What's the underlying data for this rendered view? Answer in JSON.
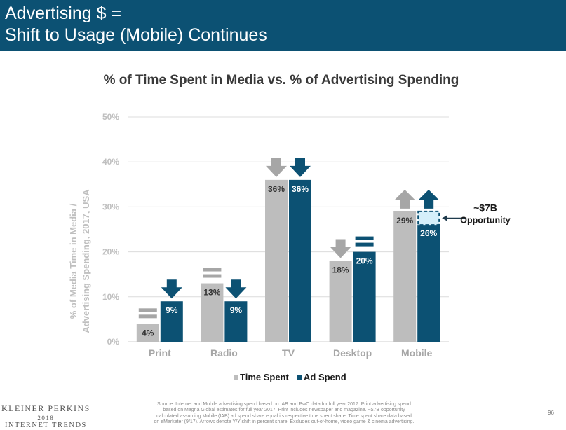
{
  "slide": {
    "title_line1": "Advertising $ =",
    "title_line2": "Shift to Usage (Mobile) Continues",
    "page_number": "96",
    "source_lines": [
      "Source: Internet and Mobile advertising spend based on IAB and PwC data for full year 2017. Print advertising spend",
      "based on Magna Global estimates for full year 2017. Print includes newspaper and magazine. ~$7B opportunity",
      "calculated assuming Mobile (IAB) ad spend share equal its respective time spent share. Time spent share data based",
      "on eMarketer (9/17). Arrows denote Y/Y shift in percent share. Excludes out-of-home, video game & cinema advertising."
    ],
    "logo": {
      "name": "KLEINER PERKINS",
      "year": "2018",
      "event": "INTERNET TRENDS"
    }
  },
  "chart_data": {
    "type": "bar",
    "title": "% of Time Spent in Media vs. % of Advertising Spending",
    "ylabel_lines": [
      "% of Media Time in Media /",
      "Advertising Spending, 2017, USA"
    ],
    "xlabel": "",
    "ylim": [
      0,
      50
    ],
    "yticks": [
      "0%",
      "10%",
      "20%",
      "30%",
      "40%",
      "50%"
    ],
    "grid": true,
    "legend_position": "bottom",
    "categories": [
      "Print",
      "Radio",
      "TV",
      "Desktop",
      "Mobile"
    ],
    "series": [
      {
        "name": "Time Spent",
        "color": "#bdbdbd",
        "values": [
          4,
          13,
          36,
          18,
          29
        ],
        "labels": [
          "4%",
          "13%",
          "36%",
          "18%",
          "29%"
        ],
        "yoy_shift": [
          "flat",
          "flat",
          "down",
          "down",
          "up"
        ]
      },
      {
        "name": "Ad Spend",
        "color": "#0c5173",
        "values": [
          9,
          9,
          36,
          20,
          26
        ],
        "labels": [
          "9%",
          "9%",
          "36%",
          "20%",
          "26%"
        ],
        "yoy_shift": [
          "down",
          "down",
          "down",
          "flat",
          "up"
        ]
      }
    ],
    "opportunity_gap": {
      "category": "Mobile",
      "from": 26,
      "to": 29,
      "fill": "#d5effa"
    },
    "annotation": {
      "line1": "~$7B",
      "line2": "Opportunity"
    },
    "colors": {
      "up_arrow": "#a6a6a6",
      "ad_arrow": "#0c5173",
      "time_arrow": "#a6a6a6"
    }
  }
}
